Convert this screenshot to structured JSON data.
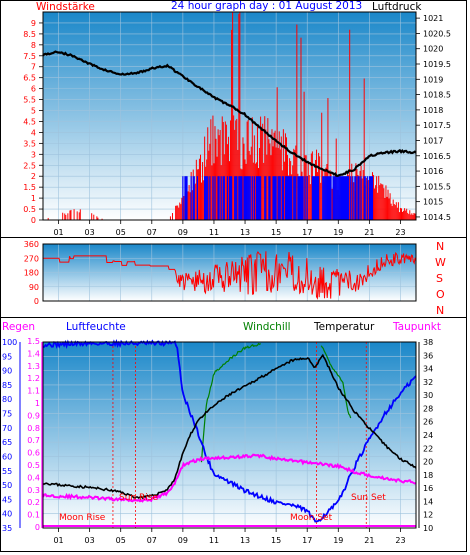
{
  "header": {
    "title": "24 hour graph day : 01 August 2013",
    "left_label": "Windstärke",
    "right_label": "Luftdruck"
  },
  "wind_dir_labels": [
    "N",
    "W",
    "S",
    "O",
    "N"
  ],
  "bottom_legend": {
    "regen": "Regen",
    "luftfeuchte": "Luftfeuchte",
    "windchill": "Windchill",
    "temperatur": "Temperatur",
    "taupunkt": "Taupunkt"
  },
  "annotations": {
    "moon_rise": "Moon Rise",
    "sun_rise": "Sun Rise",
    "moon_set": "Moon Set",
    "sun_set": "Sun Set"
  },
  "colors": {
    "wind": "#ff0000",
    "gust_bar": "#0000ff",
    "pressure": "#000000",
    "grid": "#9fc3dd",
    "panel_top": "#1a87c9",
    "panel_bottom": "#ffffff",
    "humidity": "#0000ff",
    "windchill": "#008000",
    "temperature": "#000000",
    "dewpoint": "#ff00ff",
    "rain": "#ff00ff"
  },
  "chart_data": [
    {
      "type": "bar",
      "name": "wind",
      "x_ticks": [
        "01",
        "03",
        "05",
        "07",
        "09",
        "11",
        "13",
        "15",
        "17",
        "19",
        "21",
        "23"
      ],
      "y_left_ticks": [
        "0",
        "0.5",
        "1",
        "1.5",
        "2",
        "2.5",
        "3",
        "3.5",
        "4",
        "4.5",
        "5",
        "5.5",
        "6",
        "6.5",
        "7",
        "7.5",
        "8",
        "8.5",
        "9"
      ],
      "y_right_ticks": [
        "1014.5",
        "1015",
        "1015.5",
        "1016",
        "1016.5",
        "1017",
        "1017.5",
        "1018",
        "1018.5",
        "1019",
        "1019.5",
        "1020",
        "1020.5",
        "1021"
      ],
      "ylim_left": [
        0,
        9.5
      ],
      "ylim_right": [
        1014.4,
        1021.2
      ],
      "xlim": [
        0,
        24
      ],
      "pressure": [
        [
          0,
          1019.8
        ],
        [
          1,
          1019.9
        ],
        [
          2,
          1019.75
        ],
        [
          3,
          1019.5
        ],
        [
          4,
          1019.3
        ],
        [
          5,
          1019.15
        ],
        [
          6,
          1019.2
        ],
        [
          7,
          1019.35
        ],
        [
          8,
          1019.45
        ],
        [
          9,
          1019.1
        ],
        [
          10,
          1018.75
        ],
        [
          11,
          1018.4
        ],
        [
          12,
          1018.15
        ],
        [
          13,
          1017.85
        ],
        [
          14,
          1017.4
        ],
        [
          15,
          1017.0
        ],
        [
          16,
          1016.6
        ],
        [
          17,
          1016.3
        ],
        [
          18,
          1016.05
        ],
        [
          19,
          1015.85
        ],
        [
          20,
          1016.05
        ],
        [
          21,
          1016.5
        ],
        [
          22,
          1016.6
        ],
        [
          23,
          1016.65
        ],
        [
          24,
          1016.6
        ]
      ],
      "wind_profile": [
        [
          0,
          0
        ],
        [
          1,
          0.3
        ],
        [
          2,
          0.4
        ],
        [
          3,
          0.3
        ],
        [
          4,
          0
        ],
        [
          5,
          0
        ],
        [
          6,
          0
        ],
        [
          7,
          0
        ],
        [
          8,
          0
        ],
        [
          9,
          1
        ],
        [
          10,
          2.3
        ],
        [
          11,
          3.7
        ],
        [
          12,
          3.8
        ],
        [
          13,
          3.5
        ],
        [
          14,
          3.6
        ],
        [
          15,
          3.4
        ],
        [
          16,
          3.0
        ],
        [
          17,
          2.4
        ],
        [
          18,
          2.4
        ],
        [
          19,
          1.5
        ],
        [
          20,
          2
        ],
        [
          21,
          1.9
        ],
        [
          22,
          1.3
        ],
        [
          23,
          0.5
        ],
        [
          24,
          0.3
        ]
      ],
      "wind_max": 9.5,
      "gust_start": 8.9,
      "gust_end": 21.2
    },
    {
      "type": "line",
      "name": "wind_direction",
      "y_ticks": [
        "0",
        "90",
        "180",
        "270",
        "360"
      ],
      "ylim": [
        0,
        360
      ],
      "xlim": [
        0,
        24
      ],
      "direction": [
        [
          0,
          270
        ],
        [
          1,
          255
        ],
        [
          2,
          280
        ],
        [
          3,
          280
        ],
        [
          4,
          245
        ],
        [
          5,
          235
        ],
        [
          6,
          240
        ],
        [
          7,
          225
        ],
        [
          8,
          215
        ],
        [
          9,
          120
        ],
        [
          10,
          125
        ],
        [
          11,
          140
        ],
        [
          12,
          145
        ],
        [
          13,
          160
        ],
        [
          14,
          185
        ],
        [
          15,
          190
        ],
        [
          16,
          180
        ],
        [
          17,
          150
        ],
        [
          18,
          120
        ],
        [
          19,
          110
        ],
        [
          20,
          120
        ],
        [
          21,
          190
        ],
        [
          22,
          255
        ],
        [
          23,
          270
        ],
        [
          24,
          260
        ]
      ],
      "spread": [
        [
          0,
          8
        ],
        [
          8,
          10
        ],
        [
          9,
          60
        ],
        [
          12,
          110
        ],
        [
          14,
          140
        ],
        [
          17,
          120
        ],
        [
          19,
          100
        ],
        [
          21,
          60
        ],
        [
          24,
          25
        ]
      ]
    },
    {
      "type": "line",
      "name": "climate",
      "y_left_ticks": [
        "35",
        "40",
        "45",
        "50",
        "55",
        "60",
        "65",
        "70",
        "75",
        "80",
        "85",
        "90",
        "95",
        "100"
      ],
      "y_left2_ticks": [
        "0",
        "0.1",
        "0.2",
        "0.3",
        "0.4",
        "0.5",
        "0.6",
        "0.7",
        "0.8",
        "0.9",
        "1",
        "1.1",
        "1.2",
        "1.3",
        "1.4",
        "1.5"
      ],
      "y_right_ticks": [
        "10",
        "12",
        "14",
        "16",
        "18",
        "20",
        "22",
        "24",
        "26",
        "28",
        "30",
        "32",
        "34",
        "36",
        "38"
      ],
      "ylim_humidity": [
        35,
        100
      ],
      "ylim_temperature": [
        10,
        38
      ],
      "xlim": [
        0,
        24
      ],
      "temperature": [
        [
          0,
          16.8
        ],
        [
          1,
          16.5
        ],
        [
          2,
          16.3
        ],
        [
          3,
          16.1
        ],
        [
          4,
          15.8
        ],
        [
          5,
          15.4
        ],
        [
          6,
          14.6
        ],
        [
          7,
          14.8
        ],
        [
          8,
          15.8
        ],
        [
          8.5,
          17.5
        ],
        [
          9,
          21.3
        ],
        [
          9.5,
          24.1
        ],
        [
          10,
          26.3
        ],
        [
          11,
          28.4
        ],
        [
          12,
          30.1
        ],
        [
          13,
          31.3
        ],
        [
          14,
          32.7
        ],
        [
          15,
          33.9
        ],
        [
          16,
          35.2
        ],
        [
          17,
          35.6
        ],
        [
          17.5,
          34.2
        ],
        [
          18,
          36.1
        ],
        [
          19,
          31.1
        ],
        [
          20,
          27.7
        ],
        [
          21,
          25.0
        ],
        [
          22,
          22.5
        ],
        [
          23,
          20.4
        ],
        [
          24,
          19.2
        ]
      ],
      "dewpoint": [
        [
          0,
          14.9
        ],
        [
          1,
          14.8
        ],
        [
          2,
          14.7
        ],
        [
          3,
          14.6
        ],
        [
          4,
          14.4
        ],
        [
          5,
          14.3
        ],
        [
          6,
          14.2
        ],
        [
          7,
          14.3
        ],
        [
          8,
          15.3
        ],
        [
          8.5,
          16.8
        ],
        [
          9,
          19.5
        ],
        [
          10,
          20.3
        ],
        [
          11,
          20.6
        ],
        [
          12,
          20.6
        ],
        [
          13,
          20.8
        ],
        [
          14,
          20.9
        ],
        [
          15,
          20.4
        ],
        [
          16,
          20.1
        ],
        [
          17,
          19.9
        ],
        [
          18,
          19.6
        ],
        [
          19,
          19.3
        ],
        [
          20,
          18.5
        ],
        [
          21,
          17.9
        ],
        [
          22,
          17.5
        ],
        [
          23,
          17.1
        ],
        [
          24,
          16.9
        ]
      ],
      "humidity": [
        [
          0,
          99
        ],
        [
          3,
          99.5
        ],
        [
          6,
          99.5
        ],
        [
          8.6,
          99.5
        ],
        [
          9,
          82
        ],
        [
          10,
          68
        ],
        [
          10.5,
          60
        ],
        [
          11,
          54
        ],
        [
          12,
          51
        ],
        [
          13,
          48
        ],
        [
          14,
          46
        ],
        [
          15,
          44
        ],
        [
          16,
          43
        ],
        [
          17,
          41
        ],
        [
          17.5,
          37
        ],
        [
          18,
          39
        ],
        [
          19,
          44
        ],
        [
          20,
          56
        ],
        [
          21,
          66
        ],
        [
          22,
          75
        ],
        [
          23,
          82
        ],
        [
          24,
          88
        ]
      ],
      "windchill": [
        [
          10.2,
          58.5
        ],
        [
          10.5,
          78
        ],
        [
          11,
          89
        ],
        [
          12,
          94
        ],
        [
          13,
          98
        ],
        [
          14,
          99.5
        ]
      ],
      "windchill_late": [
        [
          17.9,
          99
        ],
        [
          18.5,
          92
        ],
        [
          19.3,
          86
        ],
        [
          19.6,
          76
        ],
        [
          19.8,
          73.5
        ]
      ],
      "rain": 0,
      "events_hour": {
        "moon_rise": 4.5,
        "sun_rise": 5.95,
        "moon_set": 17.6,
        "sun_set": 20.8
      }
    }
  ]
}
